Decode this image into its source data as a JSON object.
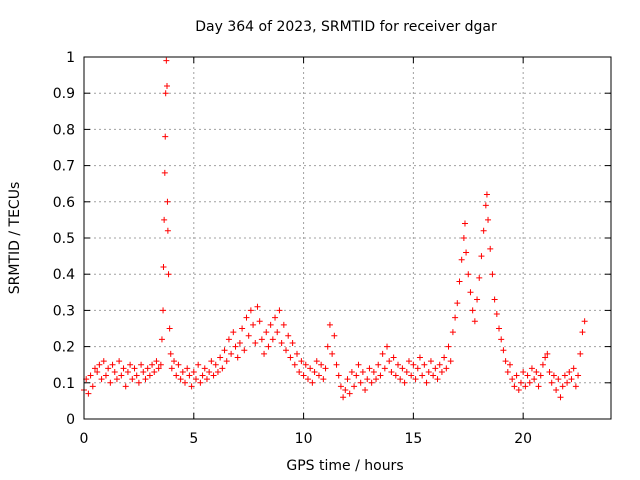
{
  "chart_data": {
    "type": "scatter",
    "title": "Day 364 of 2023, SRMTID for receiver dgar",
    "xlabel": "GPS time / hours",
    "ylabel": "SRMTID / TECUs",
    "xlim": [
      0,
      24
    ],
    "ylim": [
      0,
      1
    ],
    "xticks": [
      0,
      5,
      10,
      15,
      20
    ],
    "xtick_labels": [
      "0",
      "5",
      "10",
      "15",
      "20"
    ],
    "yticks": [
      0,
      0.1,
      0.2,
      0.3,
      0.4,
      0.5,
      0.6,
      0.7,
      0.8,
      0.9,
      1
    ],
    "ytick_labels": [
      "0",
      "0.1",
      "0.2",
      "0.3",
      "0.4",
      "0.5",
      "0.6",
      "0.7",
      "0.8",
      "0.9",
      "1"
    ],
    "grid": true,
    "marker": "+",
    "color": "#ff0000",
    "series": [
      {
        "name": "SRMTID",
        "points": [
          [
            0.0,
            0.08
          ],
          [
            0.1,
            0.11
          ],
          [
            0.2,
            0.07
          ],
          [
            0.3,
            0.12
          ],
          [
            0.4,
            0.09
          ],
          [
            0.5,
            0.14
          ],
          [
            0.6,
            0.13
          ],
          [
            0.7,
            0.15
          ],
          [
            0.8,
            0.11
          ],
          [
            0.9,
            0.16
          ],
          [
            1.0,
            0.12
          ],
          [
            1.1,
            0.14
          ],
          [
            1.2,
            0.1
          ],
          [
            1.3,
            0.15
          ],
          [
            1.4,
            0.13
          ],
          [
            1.5,
            0.11
          ],
          [
            1.6,
            0.16
          ],
          [
            1.7,
            0.12
          ],
          [
            1.8,
            0.14
          ],
          [
            1.9,
            0.09
          ],
          [
            2.0,
            0.13
          ],
          [
            2.1,
            0.15
          ],
          [
            2.2,
            0.11
          ],
          [
            2.3,
            0.14
          ],
          [
            2.4,
            0.12
          ],
          [
            2.5,
            0.1
          ],
          [
            2.6,
            0.15
          ],
          [
            2.7,
            0.13
          ],
          [
            2.8,
            0.11
          ],
          [
            2.9,
            0.14
          ],
          [
            3.0,
            0.12
          ],
          [
            3.1,
            0.15
          ],
          [
            3.2,
            0.13
          ],
          [
            3.3,
            0.16
          ],
          [
            3.4,
            0.14
          ],
          [
            3.5,
            0.15
          ],
          [
            3.55,
            0.22
          ],
          [
            3.6,
            0.3
          ],
          [
            3.62,
            0.42
          ],
          [
            3.65,
            0.55
          ],
          [
            3.68,
            0.68
          ],
          [
            3.7,
            0.78
          ],
          [
            3.72,
            0.9
          ],
          [
            3.75,
            0.99
          ],
          [
            3.78,
            0.92
          ],
          [
            3.8,
            0.6
          ],
          [
            3.82,
            0.52
          ],
          [
            3.85,
            0.4
          ],
          [
            3.9,
            0.25
          ],
          [
            3.95,
            0.18
          ],
          [
            4.0,
            0.14
          ],
          [
            4.1,
            0.16
          ],
          [
            4.2,
            0.12
          ],
          [
            4.3,
            0.15
          ],
          [
            4.4,
            0.11
          ],
          [
            4.5,
            0.13
          ],
          [
            4.6,
            0.1
          ],
          [
            4.7,
            0.14
          ],
          [
            4.8,
            0.12
          ],
          [
            4.9,
            0.09
          ],
          [
            5.0,
            0.13
          ],
          [
            5.1,
            0.11
          ],
          [
            5.2,
            0.15
          ],
          [
            5.3,
            0.1
          ],
          [
            5.4,
            0.12
          ],
          [
            5.5,
            0.14
          ],
          [
            5.6,
            0.11
          ],
          [
            5.7,
            0.13
          ],
          [
            5.8,
            0.16
          ],
          [
            5.9,
            0.12
          ],
          [
            6.0,
            0.15
          ],
          [
            6.1,
            0.13
          ],
          [
            6.2,
            0.17
          ],
          [
            6.3,
            0.14
          ],
          [
            6.4,
            0.19
          ],
          [
            6.5,
            0.16
          ],
          [
            6.6,
            0.22
          ],
          [
            6.7,
            0.18
          ],
          [
            6.8,
            0.24
          ],
          [
            6.9,
            0.2
          ],
          [
            7.0,
            0.17
          ],
          [
            7.1,
            0.21
          ],
          [
            7.2,
            0.25
          ],
          [
            7.3,
            0.19
          ],
          [
            7.4,
            0.28
          ],
          [
            7.5,
            0.23
          ],
          [
            7.6,
            0.3
          ],
          [
            7.7,
            0.26
          ],
          [
            7.8,
            0.21
          ],
          [
            7.9,
            0.31
          ],
          [
            8.0,
            0.27
          ],
          [
            8.1,
            0.22
          ],
          [
            8.2,
            0.18
          ],
          [
            8.3,
            0.24
          ],
          [
            8.4,
            0.2
          ],
          [
            8.5,
            0.26
          ],
          [
            8.6,
            0.22
          ],
          [
            8.7,
            0.28
          ],
          [
            8.8,
            0.24
          ],
          [
            8.9,
            0.3
          ],
          [
            9.0,
            0.21
          ],
          [
            9.1,
            0.26
          ],
          [
            9.2,
            0.19
          ],
          [
            9.3,
            0.23
          ],
          [
            9.4,
            0.17
          ],
          [
            9.5,
            0.21
          ],
          [
            9.6,
            0.15
          ],
          [
            9.7,
            0.18
          ],
          [
            9.8,
            0.13
          ],
          [
            9.9,
            0.16
          ],
          [
            10.0,
            0.12
          ],
          [
            10.1,
            0.15
          ],
          [
            10.2,
            0.11
          ],
          [
            10.3,
            0.14
          ],
          [
            10.4,
            0.1
          ],
          [
            10.5,
            0.13
          ],
          [
            10.6,
            0.16
          ],
          [
            10.7,
            0.12
          ],
          [
            10.8,
            0.15
          ],
          [
            10.9,
            0.11
          ],
          [
            11.0,
            0.14
          ],
          [
            11.1,
            0.2
          ],
          [
            11.2,
            0.26
          ],
          [
            11.3,
            0.18
          ],
          [
            11.4,
            0.23
          ],
          [
            11.5,
            0.15
          ],
          [
            11.6,
            0.12
          ],
          [
            11.7,
            0.09
          ],
          [
            11.8,
            0.06
          ],
          [
            11.9,
            0.08
          ],
          [
            12.0,
            0.11
          ],
          [
            12.1,
            0.07
          ],
          [
            12.2,
            0.13
          ],
          [
            12.3,
            0.09
          ],
          [
            12.4,
            0.12
          ],
          [
            12.5,
            0.15
          ],
          [
            12.6,
            0.1
          ],
          [
            12.7,
            0.13
          ],
          [
            12.8,
            0.08
          ],
          [
            12.9,
            0.11
          ],
          [
            13.0,
            0.14
          ],
          [
            13.1,
            0.1
          ],
          [
            13.2,
            0.13
          ],
          [
            13.3,
            0.11
          ],
          [
            13.4,
            0.15
          ],
          [
            13.5,
            0.12
          ],
          [
            13.6,
            0.18
          ],
          [
            13.7,
            0.14
          ],
          [
            13.8,
            0.2
          ],
          [
            13.9,
            0.16
          ],
          [
            14.0,
            0.13
          ],
          [
            14.1,
            0.17
          ],
          [
            14.2,
            0.12
          ],
          [
            14.3,
            0.15
          ],
          [
            14.4,
            0.11
          ],
          [
            14.5,
            0.14
          ],
          [
            14.6,
            0.1
          ],
          [
            14.7,
            0.13
          ],
          [
            14.8,
            0.16
          ],
          [
            14.9,
            0.12
          ],
          [
            15.0,
            0.15
          ],
          [
            15.1,
            0.11
          ],
          [
            15.2,
            0.14
          ],
          [
            15.3,
            0.17
          ],
          [
            15.4,
            0.12
          ],
          [
            15.5,
            0.15
          ],
          [
            15.6,
            0.1
          ],
          [
            15.7,
            0.13
          ],
          [
            15.8,
            0.16
          ],
          [
            15.9,
            0.12
          ],
          [
            16.0,
            0.14
          ],
          [
            16.1,
            0.11
          ],
          [
            16.2,
            0.15
          ],
          [
            16.3,
            0.13
          ],
          [
            16.4,
            0.17
          ],
          [
            16.5,
            0.14
          ],
          [
            16.6,
            0.2
          ],
          [
            16.7,
            0.16
          ],
          [
            16.8,
            0.24
          ],
          [
            16.9,
            0.28
          ],
          [
            17.0,
            0.32
          ],
          [
            17.1,
            0.38
          ],
          [
            17.2,
            0.44
          ],
          [
            17.3,
            0.5
          ],
          [
            17.35,
            0.54
          ],
          [
            17.4,
            0.46
          ],
          [
            17.5,
            0.4
          ],
          [
            17.6,
            0.35
          ],
          [
            17.7,
            0.3
          ],
          [
            17.8,
            0.27
          ],
          [
            17.9,
            0.33
          ],
          [
            18.0,
            0.39
          ],
          [
            18.1,
            0.45
          ],
          [
            18.2,
            0.52
          ],
          [
            18.3,
            0.59
          ],
          [
            18.35,
            0.62
          ],
          [
            18.4,
            0.55
          ],
          [
            18.5,
            0.47
          ],
          [
            18.6,
            0.4
          ],
          [
            18.7,
            0.33
          ],
          [
            18.8,
            0.29
          ],
          [
            18.9,
            0.25
          ],
          [
            19.0,
            0.22
          ],
          [
            19.1,
            0.19
          ],
          [
            19.2,
            0.16
          ],
          [
            19.3,
            0.13
          ],
          [
            19.4,
            0.15
          ],
          [
            19.5,
            0.11
          ],
          [
            19.6,
            0.09
          ],
          [
            19.7,
            0.12
          ],
          [
            19.8,
            0.08
          ],
          [
            19.9,
            0.1
          ],
          [
            20.0,
            0.13
          ],
          [
            20.1,
            0.09
          ],
          [
            20.2,
            0.12
          ],
          [
            20.3,
            0.1
          ],
          [
            20.4,
            0.14
          ],
          [
            20.5,
            0.11
          ],
          [
            20.6,
            0.13
          ],
          [
            20.7,
            0.09
          ],
          [
            20.8,
            0.12
          ],
          [
            20.9,
            0.15
          ],
          [
            21.0,
            0.17
          ],
          [
            21.1,
            0.18
          ],
          [
            21.2,
            0.13
          ],
          [
            21.3,
            0.1
          ],
          [
            21.4,
            0.12
          ],
          [
            21.5,
            0.08
          ],
          [
            21.6,
            0.11
          ],
          [
            21.7,
            0.06
          ],
          [
            21.8,
            0.09
          ],
          [
            21.9,
            0.12
          ],
          [
            22.0,
            0.1
          ],
          [
            22.1,
            0.13
          ],
          [
            22.2,
            0.11
          ],
          [
            22.3,
            0.14
          ],
          [
            22.4,
            0.09
          ],
          [
            22.5,
            0.12
          ],
          [
            22.6,
            0.18
          ],
          [
            22.7,
            0.24
          ],
          [
            22.8,
            0.27
          ]
        ]
      }
    ]
  }
}
